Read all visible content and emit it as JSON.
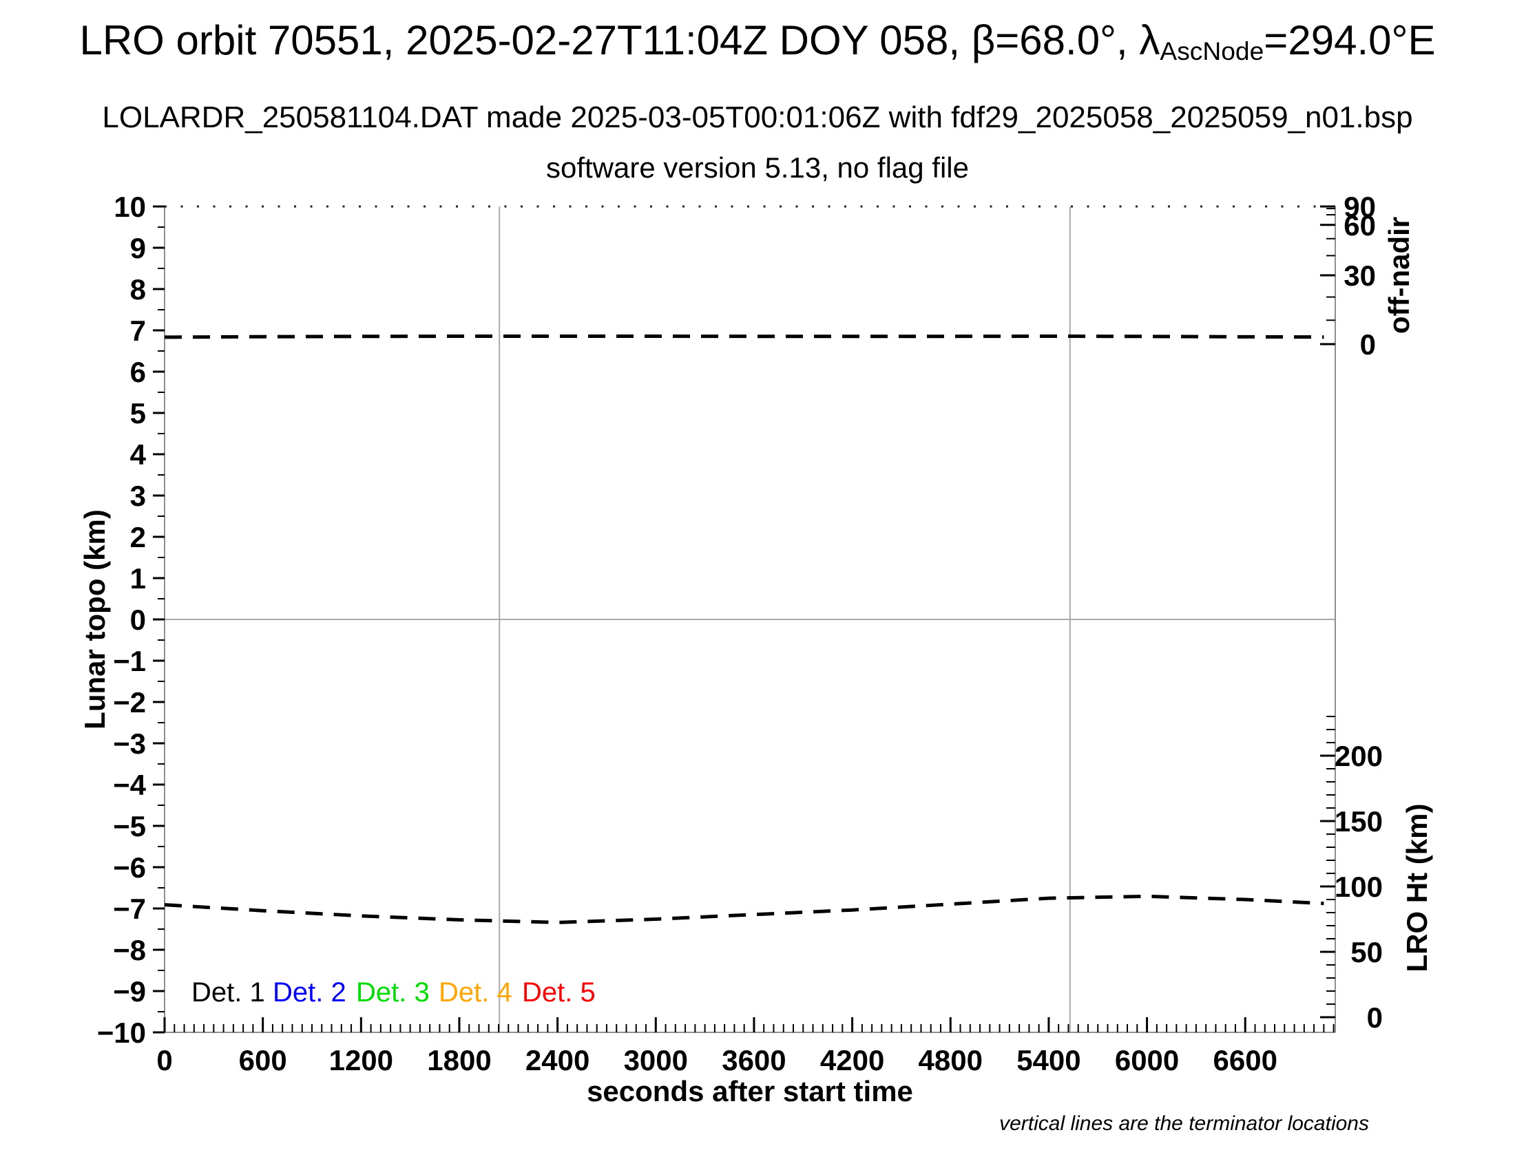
{
  "header": {
    "title_prefix": "LRO orbit 70551, 2025-02-27T11:04Z DOY 058, β=68.0°, λ",
    "title_sub": "AscNode",
    "title_suffix": "=294.0°E",
    "subtitle": "LOLARDR_250581104.DAT made 2025-03-05T00:01:06Z with fdf29_2025058_2025059_n01.bsp",
    "software_line": "software version 5.13, no flag file"
  },
  "footer_note": "vertical lines are the terminator locations",
  "chart_data": {
    "type": "line",
    "title": "LRO orbit 70551, 2025-02-27T11:04Z DOY 058, β=68.0°, λAscNode=294.0°E",
    "x_axis": {
      "label": "seconds after start time",
      "tick_values_s": [
        0,
        600,
        1200,
        1800,
        2400,
        3000,
        3600,
        4200,
        4800,
        5400,
        6000,
        6600
      ],
      "minor_tick_step_s": 60,
      "range_s": [
        0,
        7150
      ]
    },
    "y_axis_left": {
      "label": "Lunar topo (km)",
      "range_km": [
        -10,
        10
      ],
      "major_tick_step": 1,
      "minor_tick_step": 0.5
    },
    "y_axis_right_upper": {
      "label": "off-nadir",
      "units": "deg",
      "tick_labels_deg": [
        90,
        60,
        30,
        0
      ],
      "minor_ticks_deg": [
        10,
        20,
        40,
        50,
        70,
        80
      ],
      "scale": "arcsine"
    },
    "y_axis_right_lower": {
      "label": "LRO Ht (km)",
      "tick_labels_km": [
        200,
        150,
        100,
        50,
        0
      ],
      "minor_tick_step_km": 10
    },
    "series": [
      {
        "name": "off-nadir angle",
        "axis": "y_axis_right_upper",
        "line_style": "dashed",
        "color": "#000000",
        "t_s": [
          0,
          600,
          1200,
          1800,
          2400,
          3000,
          3600,
          4200,
          4800,
          5400,
          6000,
          6600,
          7080
        ],
        "deg": [
          2.9,
          3.1,
          3.2,
          3.3,
          3.3,
          3.3,
          3.25,
          3.2,
          3.25,
          3.3,
          3.2,
          3.05,
          2.95
        ]
      },
      {
        "name": "LRO height",
        "axis": "y_axis_right_lower",
        "line_style": "dashed",
        "color": "#000000",
        "t_s": [
          0,
          600,
          1200,
          1800,
          2400,
          3000,
          3600,
          4200,
          4800,
          5400,
          6000,
          6600,
          7080
        ],
        "km": [
          86,
          81.5,
          77.5,
          74.5,
          72.5,
          75,
          78.5,
          82,
          86.5,
          91,
          92.5,
          90,
          87
        ]
      }
    ],
    "terminator_lines_t_s": [
      2045,
      5530
    ],
    "zero_topo_gridline": 0,
    "legend": [
      {
        "label": "Det. 1",
        "color": "#000000"
      },
      {
        "label": "Det. 2",
        "color": "#0000ff"
      },
      {
        "label": "Det. 3",
        "color": "#00dd00"
      },
      {
        "label": "Det. 4",
        "color": "#ffa500"
      },
      {
        "label": "Det. 5",
        "color": "#ff0000"
      }
    ],
    "grid": "off",
    "legend_position": "inside-bottom-left",
    "annotations": [
      "vertical lines are the terminator locations"
    ]
  }
}
